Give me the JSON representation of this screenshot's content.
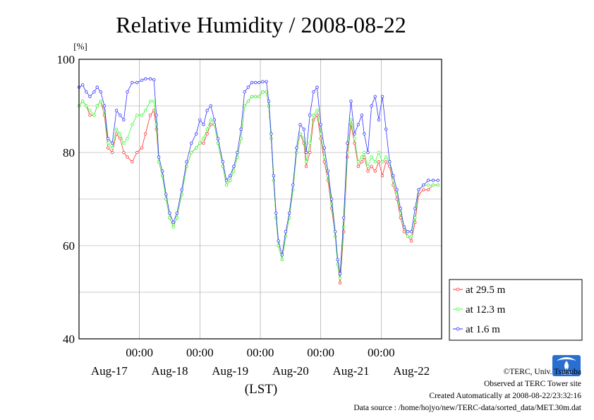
{
  "chart_data": {
    "type": "line",
    "title": "Relative Humidity / 2008-08-22",
    "ylabel": "[%]",
    "xlabel": "(LST)",
    "ylim": [
      40,
      100
    ],
    "yticks": [
      40,
      60,
      80,
      100
    ],
    "xlim": [
      0,
      6
    ],
    "x_unit_note": "days after 2008-08-16 12:00 LST",
    "x_time_ticks": [
      {
        "x": 1,
        "label": "00:00"
      },
      {
        "x": 2,
        "label": "00:00"
      },
      {
        "x": 3,
        "label": "00:00"
      },
      {
        "x": 4,
        "label": "00:00"
      },
      {
        "x": 5,
        "label": "00:00"
      }
    ],
    "x_date_labels": [
      {
        "x": 0.5,
        "label": "Aug-17"
      },
      {
        "x": 1.5,
        "label": "Aug-18"
      },
      {
        "x": 2.5,
        "label": "Aug-19"
      },
      {
        "x": 3.5,
        "label": "Aug-20"
      },
      {
        "x": 4.5,
        "label": "Aug-21"
      },
      {
        "x": 5.5,
        "label": "Aug-22"
      }
    ],
    "grid": true,
    "legend_position": "right",
    "series": [
      {
        "name": "at 29.5 m",
        "color": "#ff3030",
        "points": [
          [
            0,
            90
          ],
          [
            0.06,
            91
          ],
          [
            0.12,
            90
          ],
          [
            0.18,
            88
          ],
          [
            0.25,
            88
          ],
          [
            0.3,
            90
          ],
          [
            0.36,
            91
          ],
          [
            0.42,
            88
          ],
          [
            0.48,
            81
          ],
          [
            0.55,
            80
          ],
          [
            0.62,
            84
          ],
          [
            0.68,
            83
          ],
          [
            0.74,
            80
          ],
          [
            0.8,
            79
          ],
          [
            0.88,
            78
          ],
          [
            0.96,
            80
          ],
          [
            1.04,
            81
          ],
          [
            1.1,
            84
          ],
          [
            1.18,
            88
          ],
          [
            1.24,
            89
          ],
          [
            1.28,
            85
          ],
          [
            1.32,
            78
          ],
          [
            1.38,
            75
          ],
          [
            1.44,
            70
          ],
          [
            1.5,
            66
          ],
          [
            1.56,
            64
          ],
          [
            1.62,
            66
          ],
          [
            1.7,
            71
          ],
          [
            1.78,
            77
          ],
          [
            1.86,
            80
          ],
          [
            1.94,
            81
          ],
          [
            2.0,
            82
          ],
          [
            2.06,
            82
          ],
          [
            2.12,
            84
          ],
          [
            2.18,
            86
          ],
          [
            2.24,
            86
          ],
          [
            2.3,
            82
          ],
          [
            2.38,
            77
          ],
          [
            2.44,
            73
          ],
          [
            2.5,
            74
          ],
          [
            2.56,
            76
          ],
          [
            2.62,
            79
          ],
          [
            2.68,
            83
          ],
          [
            2.74,
            90
          ],
          [
            2.8,
            91
          ],
          [
            2.86,
            92
          ],
          [
            2.92,
            92
          ],
          [
            2.98,
            92
          ],
          [
            3.04,
            93
          ],
          [
            3.1,
            93
          ],
          [
            3.14,
            90
          ],
          [
            3.18,
            83
          ],
          [
            3.22,
            74
          ],
          [
            3.26,
            66
          ],
          [
            3.3,
            60
          ],
          [
            3.36,
            57
          ],
          [
            3.42,
            62
          ],
          [
            3.48,
            66
          ],
          [
            3.54,
            72
          ],
          [
            3.6,
            80
          ],
          [
            3.66,
            84
          ],
          [
            3.72,
            82
          ],
          [
            3.76,
            77
          ],
          [
            3.82,
            80
          ],
          [
            3.88,
            87
          ],
          [
            3.94,
            88
          ],
          [
            4.0,
            83
          ],
          [
            4.06,
            78
          ],
          [
            4.12,
            74
          ],
          [
            4.18,
            68
          ],
          [
            4.24,
            62
          ],
          [
            4.28,
            56
          ],
          [
            4.32,
            52
          ],
          [
            4.38,
            63
          ],
          [
            4.44,
            79
          ],
          [
            4.5,
            86
          ],
          [
            4.56,
            82
          ],
          [
            4.62,
            77
          ],
          [
            4.68,
            78
          ],
          [
            4.72,
            79
          ],
          [
            4.78,
            76
          ],
          [
            4.84,
            77
          ],
          [
            4.9,
            76
          ],
          [
            4.96,
            78
          ],
          [
            5.02,
            75
          ],
          [
            5.08,
            78
          ],
          [
            5.14,
            77
          ],
          [
            5.2,
            73
          ],
          [
            5.26,
            70
          ],
          [
            5.32,
            66
          ],
          [
            5.38,
            63
          ],
          [
            5.44,
            62
          ],
          [
            5.5,
            61
          ],
          [
            5.56,
            65
          ],
          [
            5.62,
            71
          ],
          [
            5.7,
            72
          ],
          [
            5.78,
            72
          ],
          [
            5.86,
            73
          ],
          [
            5.94,
            73
          ]
        ]
      },
      {
        "name": "at 12.3 m",
        "color": "#30ff30",
        "points": [
          [
            0,
            90
          ],
          [
            0.06,
            91
          ],
          [
            0.12,
            90
          ],
          [
            0.18,
            89
          ],
          [
            0.25,
            88
          ],
          [
            0.3,
            90
          ],
          [
            0.36,
            91
          ],
          [
            0.42,
            89
          ],
          [
            0.48,
            82
          ],
          [
            0.55,
            81
          ],
          [
            0.62,
            85
          ],
          [
            0.68,
            84
          ],
          [
            0.74,
            82
          ],
          [
            0.8,
            83
          ],
          [
            0.88,
            86
          ],
          [
            0.96,
            88
          ],
          [
            1.04,
            88
          ],
          [
            1.1,
            89
          ],
          [
            1.18,
            91
          ],
          [
            1.24,
            91
          ],
          [
            1.28,
            86
          ],
          [
            1.32,
            78
          ],
          [
            1.38,
            75
          ],
          [
            1.44,
            70
          ],
          [
            1.5,
            66
          ],
          [
            1.56,
            64
          ],
          [
            1.62,
            66
          ],
          [
            1.7,
            71
          ],
          [
            1.78,
            77
          ],
          [
            1.86,
            80
          ],
          [
            1.94,
            81
          ],
          [
            2.0,
            82
          ],
          [
            2.06,
            83
          ],
          [
            2.12,
            85
          ],
          [
            2.18,
            87
          ],
          [
            2.24,
            86
          ],
          [
            2.3,
            82
          ],
          [
            2.38,
            77
          ],
          [
            2.44,
            73
          ],
          [
            2.5,
            74
          ],
          [
            2.56,
            76
          ],
          [
            2.62,
            79
          ],
          [
            2.68,
            83
          ],
          [
            2.74,
            90
          ],
          [
            2.8,
            91
          ],
          [
            2.86,
            92
          ],
          [
            2.92,
            92
          ],
          [
            2.98,
            92
          ],
          [
            3.04,
            93
          ],
          [
            3.1,
            93
          ],
          [
            3.14,
            90
          ],
          [
            3.18,
            83
          ],
          [
            3.22,
            74
          ],
          [
            3.26,
            66
          ],
          [
            3.3,
            60
          ],
          [
            3.36,
            57
          ],
          [
            3.42,
            62
          ],
          [
            3.48,
            66
          ],
          [
            3.54,
            72
          ],
          [
            3.6,
            80
          ],
          [
            3.66,
            84
          ],
          [
            3.72,
            83
          ],
          [
            3.76,
            78
          ],
          [
            3.82,
            82
          ],
          [
            3.88,
            88
          ],
          [
            3.94,
            89
          ],
          [
            4.0,
            84
          ],
          [
            4.06,
            79
          ],
          [
            4.12,
            75
          ],
          [
            4.18,
            69
          ],
          [
            4.24,
            62
          ],
          [
            4.28,
            56
          ],
          [
            4.32,
            53
          ],
          [
            4.38,
            64
          ],
          [
            4.44,
            80
          ],
          [
            4.5,
            87
          ],
          [
            4.56,
            83
          ],
          [
            4.62,
            78
          ],
          [
            4.68,
            79
          ],
          [
            4.72,
            80
          ],
          [
            4.78,
            77
          ],
          [
            4.84,
            79
          ],
          [
            4.9,
            78
          ],
          [
            4.96,
            80
          ],
          [
            5.02,
            78
          ],
          [
            5.08,
            79
          ],
          [
            5.14,
            78
          ],
          [
            5.2,
            74
          ],
          [
            5.26,
            71
          ],
          [
            5.32,
            67
          ],
          [
            5.38,
            64
          ],
          [
            5.44,
            62
          ],
          [
            5.5,
            62
          ],
          [
            5.56,
            66
          ],
          [
            5.62,
            72
          ],
          [
            5.7,
            73
          ],
          [
            5.78,
            73
          ],
          [
            5.86,
            73
          ],
          [
            5.94,
            73
          ]
        ]
      },
      {
        "name": "at 1.6 m",
        "color": "#3030ff",
        "points": [
          [
            0,
            94
          ],
          [
            0.06,
            94.5
          ],
          [
            0.12,
            93
          ],
          [
            0.18,
            92
          ],
          [
            0.25,
            93
          ],
          [
            0.3,
            94
          ],
          [
            0.36,
            93
          ],
          [
            0.42,
            90
          ],
          [
            0.48,
            83
          ],
          [
            0.55,
            82
          ],
          [
            0.62,
            89
          ],
          [
            0.68,
            88
          ],
          [
            0.74,
            87
          ],
          [
            0.8,
            93
          ],
          [
            0.88,
            95
          ],
          [
            0.96,
            95
          ],
          [
            1.04,
            95.5
          ],
          [
            1.1,
            95.8
          ],
          [
            1.18,
            95.8
          ],
          [
            1.24,
            95.6
          ],
          [
            1.28,
            88
          ],
          [
            1.32,
            79
          ],
          [
            1.38,
            76
          ],
          [
            1.44,
            71
          ],
          [
            1.5,
            67
          ],
          [
            1.56,
            65
          ],
          [
            1.62,
            67
          ],
          [
            1.7,
            72
          ],
          [
            1.78,
            78
          ],
          [
            1.86,
            82
          ],
          [
            1.94,
            84
          ],
          [
            2.0,
            87
          ],
          [
            2.06,
            86
          ],
          [
            2.12,
            89
          ],
          [
            2.18,
            90
          ],
          [
            2.24,
            87
          ],
          [
            2.3,
            83
          ],
          [
            2.38,
            78
          ],
          [
            2.44,
            74
          ],
          [
            2.5,
            75
          ],
          [
            2.56,
            77
          ],
          [
            2.62,
            80
          ],
          [
            2.68,
            85
          ],
          [
            2.74,
            93
          ],
          [
            2.8,
            94
          ],
          [
            2.86,
            95
          ],
          [
            2.92,
            95
          ],
          [
            2.98,
            95
          ],
          [
            3.04,
            95.2
          ],
          [
            3.1,
            95.2
          ],
          [
            3.14,
            91
          ],
          [
            3.18,
            84
          ],
          [
            3.22,
            75
          ],
          [
            3.26,
            67
          ],
          [
            3.3,
            61
          ],
          [
            3.36,
            58
          ],
          [
            3.42,
            63
          ],
          [
            3.48,
            67
          ],
          [
            3.54,
            73
          ],
          [
            3.6,
            81
          ],
          [
            3.66,
            86
          ],
          [
            3.72,
            85
          ],
          [
            3.76,
            80
          ],
          [
            3.82,
            88
          ],
          [
            3.88,
            93
          ],
          [
            3.94,
            94
          ],
          [
            4.0,
            86
          ],
          [
            4.06,
            81
          ],
          [
            4.12,
            76
          ],
          [
            4.18,
            70
          ],
          [
            4.24,
            63
          ],
          [
            4.28,
            57
          ],
          [
            4.32,
            54
          ],
          [
            4.38,
            66
          ],
          [
            4.44,
            82
          ],
          [
            4.5,
            91
          ],
          [
            4.56,
            84
          ],
          [
            4.62,
            86
          ],
          [
            4.68,
            88
          ],
          [
            4.72,
            84
          ],
          [
            4.78,
            80
          ],
          [
            4.84,
            90
          ],
          [
            4.9,
            92
          ],
          [
            4.96,
            87
          ],
          [
            5.02,
            92
          ],
          [
            5.08,
            85
          ],
          [
            5.14,
            78
          ],
          [
            5.2,
            75
          ],
          [
            5.26,
            72
          ],
          [
            5.32,
            68
          ],
          [
            5.38,
            64
          ],
          [
            5.44,
            63
          ],
          [
            5.5,
            63
          ],
          [
            5.56,
            68
          ],
          [
            5.62,
            72
          ],
          [
            5.7,
            73
          ],
          [
            5.78,
            74
          ],
          [
            5.86,
            74
          ],
          [
            5.94,
            74
          ]
        ]
      }
    ]
  },
  "footer": {
    "copyright": "©TERC, Univ. Tsukuba",
    "site": "Observed at TERC Tower site",
    "created": "Created Automatically at 2008-08-22/23:32:16",
    "source": "Data source : /home/hojyo/new/TERC-data/sorted_data/MET.30m.dat",
    "logo_text": "TERC"
  }
}
